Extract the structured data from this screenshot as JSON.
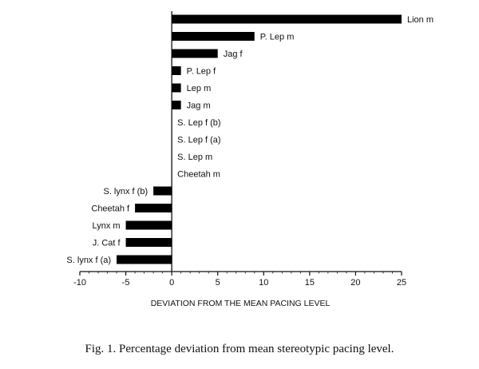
{
  "caption": "Fig. 1.   Percentage deviation from mean stereotypic pacing level.",
  "chart_data": {
    "type": "bar",
    "orientation": "horizontal",
    "title": "",
    "xlabel": "DEVIATION FROM THE MEAN PACING LEVEL",
    "ylabel": "",
    "xlim": [
      -10,
      25
    ],
    "xticks": [
      -10,
      -5,
      0,
      5,
      10,
      15,
      20,
      25
    ],
    "grid": false,
    "bar_color": "#000000",
    "categories": [
      "Lion m",
      "P. Lep m",
      "Jag f",
      "P. Lep f",
      "Lep m",
      "Jag m",
      "S. Lep f (b)",
      "S. Lep f (a)",
      "S. Lep m",
      "Cheetah m",
      "S. lynx f (b)",
      "Cheetah f",
      "Lynx m",
      "J. Cat f",
      "S. lynx f (a)"
    ],
    "values": [
      25,
      9,
      5,
      1,
      1,
      1,
      0,
      0,
      0,
      0,
      -2,
      -4,
      -5,
      -5,
      -6
    ]
  }
}
